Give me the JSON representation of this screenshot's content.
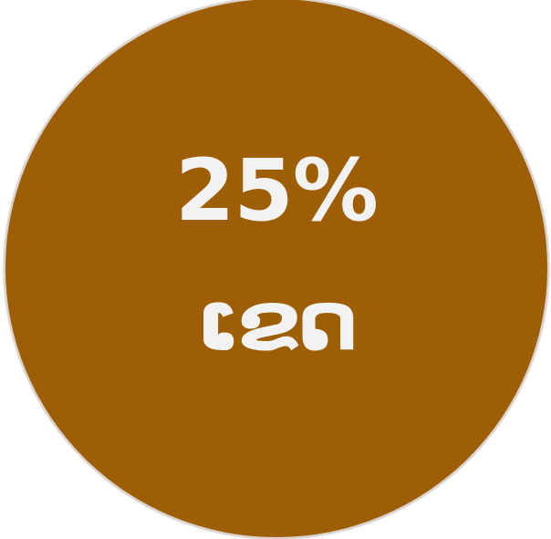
{
  "badge": {
    "percent_text": "25%",
    "label_text": "ເຂດ",
    "background_color": "#9e5e05",
    "text_color": "#f2f2f2",
    "border_color": "#d9d2cc"
  }
}
